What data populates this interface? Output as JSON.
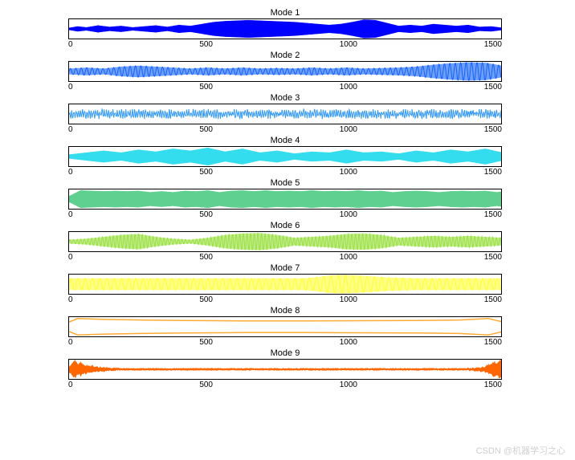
{
  "background_color": "#ffffff",
  "axis_color": "#000000",
  "tick_fontsize": 10,
  "title_fontsize": 11,
  "xlim": [
    0,
    1500
  ],
  "xtick_positions": [
    0,
    500,
    1000,
    1500
  ],
  "xtick_labels": [
    "0",
    "500",
    "1000",
    "1500"
  ],
  "watermark": "CSDN @机器学习之心",
  "watermark_color": "#cfcfcf",
  "subplot_width": 540,
  "subplot_height": 24,
  "modes": [
    {
      "title": "Mode 1",
      "color": "#0000ff",
      "fill_opacity": 1.0,
      "type": "envelope",
      "envelope": [
        [
          0,
          0.1
        ],
        [
          30,
          0.25
        ],
        [
          60,
          0.15
        ],
        [
          100,
          0.35
        ],
        [
          140,
          0.2
        ],
        [
          180,
          0.3
        ],
        [
          220,
          0.15
        ],
        [
          260,
          0.25
        ],
        [
          300,
          0.35
        ],
        [
          340,
          0.2
        ],
        [
          380,
          0.4
        ],
        [
          420,
          0.3
        ],
        [
          460,
          0.5
        ],
        [
          500,
          0.7
        ],
        [
          540,
          0.8
        ],
        [
          580,
          0.85
        ],
        [
          620,
          0.9
        ],
        [
          660,
          0.85
        ],
        [
          700,
          0.8
        ],
        [
          740,
          0.75
        ],
        [
          780,
          0.7
        ],
        [
          820,
          0.6
        ],
        [
          860,
          0.5
        ],
        [
          900,
          0.4
        ],
        [
          940,
          0.5
        ],
        [
          980,
          0.7
        ],
        [
          1020,
          0.95
        ],
        [
          1060,
          0.9
        ],
        [
          1100,
          0.6
        ],
        [
          1140,
          0.3
        ],
        [
          1180,
          0.4
        ],
        [
          1220,
          0.3
        ],
        [
          1260,
          0.5
        ],
        [
          1300,
          0.4
        ],
        [
          1340,
          0.3
        ],
        [
          1380,
          0.4
        ],
        [
          1420,
          0.2
        ],
        [
          1460,
          0.25
        ],
        [
          1500,
          0.1
        ]
      ]
    },
    {
      "title": "Mode 2",
      "color": "#1060ff",
      "fill_opacity": 1.0,
      "type": "oscillation",
      "freq": 80,
      "envelope": [
        [
          0,
          0.3
        ],
        [
          60,
          0.4
        ],
        [
          120,
          0.3
        ],
        [
          180,
          0.5
        ],
        [
          240,
          0.6
        ],
        [
          300,
          0.5
        ],
        [
          360,
          0.4
        ],
        [
          420,
          0.3
        ],
        [
          480,
          0.4
        ],
        [
          540,
          0.3
        ],
        [
          600,
          0.4
        ],
        [
          660,
          0.3
        ],
        [
          720,
          0.35
        ],
        [
          780,
          0.3
        ],
        [
          840,
          0.4
        ],
        [
          900,
          0.3
        ],
        [
          960,
          0.4
        ],
        [
          1020,
          0.3
        ],
        [
          1080,
          0.35
        ],
        [
          1140,
          0.4
        ],
        [
          1200,
          0.5
        ],
        [
          1260,
          0.7
        ],
        [
          1320,
          0.85
        ],
        [
          1380,
          0.95
        ],
        [
          1440,
          0.9
        ],
        [
          1500,
          0.6
        ]
      ]
    },
    {
      "title": "Mode 3",
      "color": "#3399ff",
      "fill_opacity": 1.0,
      "type": "noise",
      "freq": 200,
      "amplitude": 0.6
    },
    {
      "title": "Mode 4",
      "color": "#33ddee",
      "fill_opacity": 1.0,
      "type": "envelope",
      "envelope": [
        [
          0,
          0.2
        ],
        [
          60,
          0.4
        ],
        [
          120,
          0.6
        ],
        [
          180,
          0.4
        ],
        [
          240,
          0.7
        ],
        [
          300,
          0.5
        ],
        [
          360,
          0.8
        ],
        [
          420,
          0.6
        ],
        [
          480,
          0.9
        ],
        [
          540,
          0.5
        ],
        [
          600,
          0.8
        ],
        [
          660,
          0.4
        ],
        [
          720,
          0.6
        ],
        [
          780,
          0.3
        ],
        [
          840,
          0.5
        ],
        [
          900,
          0.4
        ],
        [
          960,
          0.7
        ],
        [
          1020,
          0.4
        ],
        [
          1080,
          0.5
        ],
        [
          1140,
          0.3
        ],
        [
          1200,
          0.6
        ],
        [
          1260,
          0.4
        ],
        [
          1320,
          0.7
        ],
        [
          1380,
          0.5
        ],
        [
          1440,
          0.8
        ],
        [
          1500,
          0.4
        ]
      ]
    },
    {
      "title": "Mode 5",
      "color": "#5fd090",
      "fill_opacity": 1.0,
      "type": "envelope",
      "envelope": [
        [
          0,
          0.3
        ],
        [
          40,
          0.9
        ],
        [
          80,
          0.85
        ],
        [
          120,
          0.8
        ],
        [
          160,
          0.85
        ],
        [
          200,
          0.8
        ],
        [
          240,
          0.85
        ],
        [
          280,
          0.7
        ],
        [
          320,
          0.8
        ],
        [
          360,
          0.7
        ],
        [
          400,
          0.85
        ],
        [
          440,
          0.8
        ],
        [
          480,
          0.9
        ],
        [
          520,
          0.7
        ],
        [
          560,
          0.85
        ],
        [
          600,
          0.9
        ],
        [
          640,
          0.8
        ],
        [
          680,
          0.9
        ],
        [
          720,
          0.8
        ],
        [
          760,
          0.85
        ],
        [
          800,
          0.8
        ],
        [
          840,
          0.9
        ],
        [
          880,
          0.8
        ],
        [
          920,
          0.85
        ],
        [
          960,
          0.8
        ],
        [
          1000,
          0.9
        ],
        [
          1040,
          0.8
        ],
        [
          1080,
          0.85
        ],
        [
          1120,
          0.7
        ],
        [
          1160,
          0.8
        ],
        [
          1200,
          0.85
        ],
        [
          1240,
          0.8
        ],
        [
          1280,
          0.7
        ],
        [
          1320,
          0.8
        ],
        [
          1360,
          0.85
        ],
        [
          1400,
          0.8
        ],
        [
          1440,
          0.85
        ],
        [
          1480,
          0.7
        ],
        [
          1500,
          0.8
        ]
      ]
    },
    {
      "title": "Mode 6",
      "color": "#99e040",
      "fill_opacity": 1.0,
      "type": "oscillation",
      "freq": 120,
      "envelope": [
        [
          0,
          0.2
        ],
        [
          60,
          0.3
        ],
        [
          120,
          0.5
        ],
        [
          180,
          0.7
        ],
        [
          240,
          0.8
        ],
        [
          300,
          0.5
        ],
        [
          360,
          0.3
        ],
        [
          420,
          0.2
        ],
        [
          480,
          0.4
        ],
        [
          540,
          0.7
        ],
        [
          600,
          0.85
        ],
        [
          660,
          0.9
        ],
        [
          720,
          0.7
        ],
        [
          780,
          0.4
        ],
        [
          840,
          0.5
        ],
        [
          900,
          0.6
        ],
        [
          960,
          0.8
        ],
        [
          1020,
          0.85
        ],
        [
          1080,
          0.7
        ],
        [
          1140,
          0.4
        ],
        [
          1200,
          0.5
        ],
        [
          1260,
          0.6
        ],
        [
          1320,
          0.5
        ],
        [
          1380,
          0.6
        ],
        [
          1440,
          0.5
        ],
        [
          1500,
          0.4
        ]
      ]
    },
    {
      "title": "Mode 7",
      "color": "#ffff33",
      "fill_opacity": 1.0,
      "type": "oscillation",
      "freq": 60,
      "envelope": [
        [
          0,
          0.6
        ],
        [
          100,
          0.6
        ],
        [
          200,
          0.6
        ],
        [
          300,
          0.6
        ],
        [
          400,
          0.6
        ],
        [
          500,
          0.6
        ],
        [
          600,
          0.6
        ],
        [
          700,
          0.6
        ],
        [
          800,
          0.6
        ],
        [
          850,
          0.7
        ],
        [
          900,
          0.9
        ],
        [
          950,
          0.95
        ],
        [
          1000,
          0.9
        ],
        [
          1050,
          0.8
        ],
        [
          1100,
          0.7
        ],
        [
          1200,
          0.6
        ],
        [
          1300,
          0.6
        ],
        [
          1400,
          0.6
        ],
        [
          1500,
          0.6
        ]
      ]
    },
    {
      "title": "Mode 8",
      "color": "#ffaa33",
      "fill_opacity": 1.0,
      "type": "line",
      "line_width": 1.5,
      "points": [
        [
          0,
          0.5
        ],
        [
          30,
          0.85
        ],
        [
          80,
          0.8
        ],
        [
          150,
          0.75
        ],
        [
          250,
          0.7
        ],
        [
          400,
          0.65
        ],
        [
          600,
          0.6
        ],
        [
          800,
          0.6
        ],
        [
          1000,
          0.62
        ],
        [
          1200,
          0.65
        ],
        [
          1350,
          0.7
        ],
        [
          1450,
          0.85
        ],
        [
          1500,
          0.5
        ]
      ],
      "points_bottom": [
        [
          0,
          -0.5
        ],
        [
          30,
          -0.85
        ],
        [
          80,
          -0.8
        ],
        [
          150,
          -0.75
        ],
        [
          250,
          -0.7
        ],
        [
          400,
          -0.65
        ],
        [
          600,
          -0.6
        ],
        [
          800,
          -0.6
        ],
        [
          1000,
          -0.62
        ],
        [
          1200,
          -0.65
        ],
        [
          1350,
          -0.7
        ],
        [
          1450,
          -0.85
        ],
        [
          1500,
          -0.5
        ]
      ]
    },
    {
      "title": "Mode 9",
      "color": "#ff6600",
      "fill_opacity": 1.0,
      "type": "noise_spike",
      "line_width": 1.2,
      "baseline": 0.05,
      "spikes": [
        [
          0,
          0.3
        ],
        [
          20,
          0.8
        ],
        [
          40,
          0.6
        ],
        [
          60,
          0.4
        ],
        [
          80,
          0.3
        ],
        [
          100,
          0.2
        ],
        [
          120,
          0.15
        ],
        [
          150,
          0.1
        ],
        [
          1400,
          0.1
        ],
        [
          1430,
          0.2
        ],
        [
          1450,
          0.4
        ],
        [
          1470,
          0.7
        ],
        [
          1490,
          0.9
        ],
        [
          1500,
          0.5
        ]
      ]
    }
  ]
}
